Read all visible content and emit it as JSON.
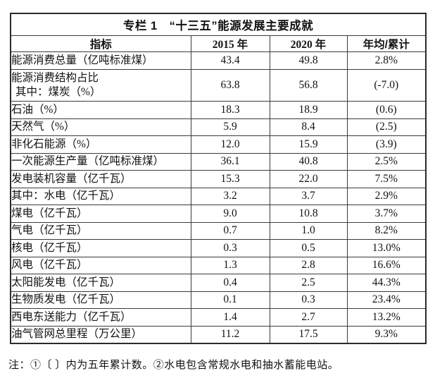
{
  "table": {
    "title": "专栏 1　“十三五”能源发展主要成就",
    "columns": [
      "指标",
      "2015 年",
      "2020 年",
      "年均/累计"
    ],
    "rows": [
      {
        "label": "能源消费总量（亿吨标准煤）",
        "y2015": "43.4",
        "y2020": "49.8",
        "avg": "2.8%"
      },
      {
        "label": "能源消费结构占比",
        "label2": "其中：煤炭（%）",
        "y2015": "63.8",
        "y2020": "56.8",
        "avg": "(-7.0)"
      },
      {
        "label": "石油（%）",
        "y2015": "18.3",
        "y2020": "18.9",
        "avg": "(0.6)"
      },
      {
        "label": "天然气（%）",
        "y2015": "5.9",
        "y2020": "8.4",
        "avg": "(2.5)"
      },
      {
        "label": "非化石能源（%）",
        "y2015": "12.0",
        "y2020": "15.9",
        "avg": "(3.9)"
      },
      {
        "label": "一次能源生产量（亿吨标准煤）",
        "y2015": "36.1",
        "y2020": "40.8",
        "avg": "2.5%"
      },
      {
        "label": "发电装机容量（亿千瓦）",
        "y2015": "15.3",
        "y2020": "22.0",
        "avg": "7.5%"
      },
      {
        "label": "其中：水电（亿千瓦）",
        "y2015": "3.2",
        "y2020": "3.7",
        "avg": "2.9%"
      },
      {
        "label": "煤电（亿千瓦）",
        "y2015": "9.0",
        "y2020": "10.8",
        "avg": "3.7%"
      },
      {
        "label": "气电（亿千瓦）",
        "y2015": "0.7",
        "y2020": "1.0",
        "avg": "8.2%"
      },
      {
        "label": "核电（亿千瓦）",
        "y2015": "0.3",
        "y2020": "0.5",
        "avg": "13.0%"
      },
      {
        "label": "风电（亿千瓦）",
        "y2015": "1.3",
        "y2020": "2.8",
        "avg": "16.6%"
      },
      {
        "label": "太阳能发电（亿千瓦）",
        "y2015": "0.4",
        "y2020": "2.5",
        "avg": "44.3%"
      },
      {
        "label": "生物质发电（亿千瓦）",
        "y2015": "0.1",
        "y2020": "0.3",
        "avg": "23.4%"
      },
      {
        "label": "西电东送能力（亿千瓦）",
        "y2015": "1.4",
        "y2020": "2.7",
        "avg": "13.2%"
      },
      {
        "label": "油气管网总里程（万公里）",
        "y2015": "11.2",
        "y2020": "17.5",
        "avg": "9.3%"
      }
    ]
  },
  "note": "注：①〔 〕内为五年累计数。②水电包含常规水电和抽水蓄能电站。"
}
